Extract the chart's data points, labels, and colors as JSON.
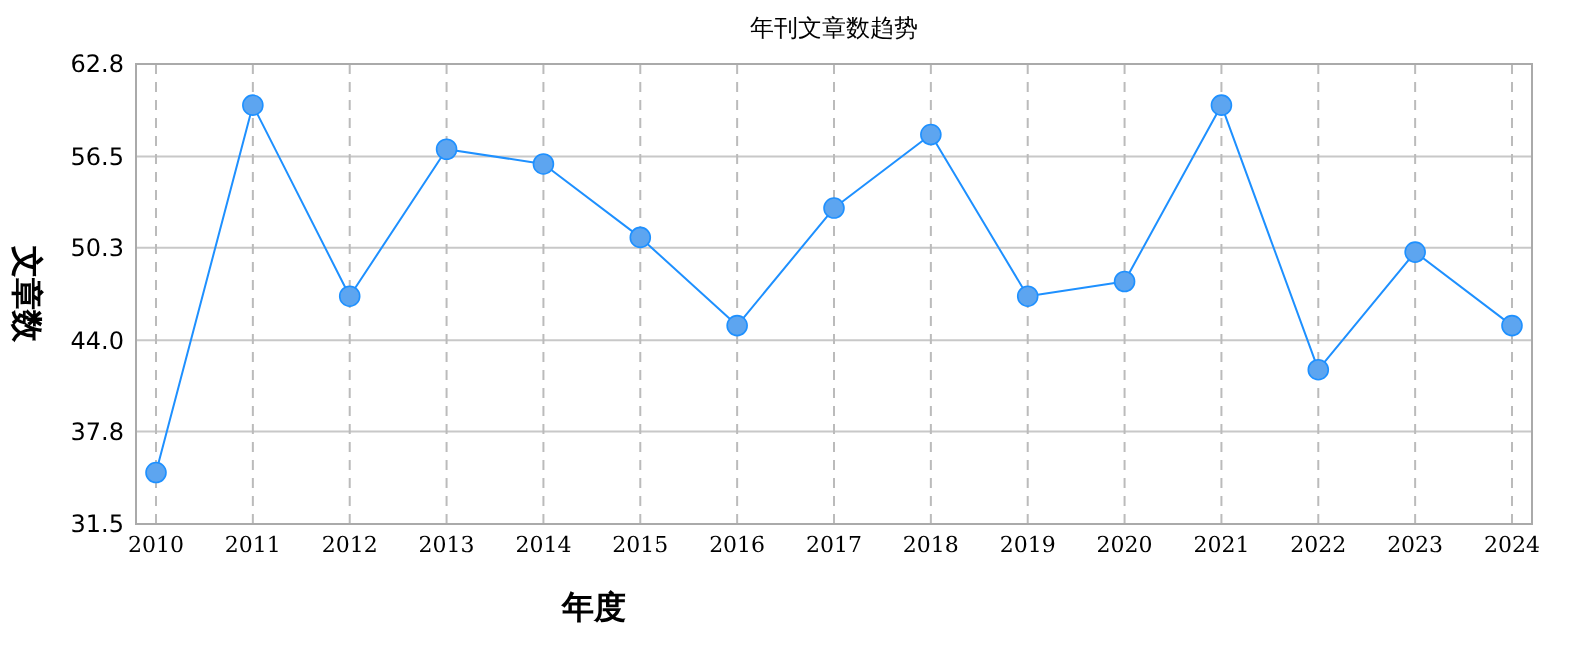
{
  "chart_data": {
    "type": "line",
    "title": "年刊文章数趋势",
    "xlabel": "年度",
    "ylabel": "文章数",
    "categories": [
      "2010",
      "2011",
      "2012",
      "2013",
      "2014",
      "2015",
      "2016",
      "2017",
      "2018",
      "2019",
      "2020",
      "2021",
      "2022",
      "2023",
      "2024"
    ],
    "series": [
      {
        "color": "#1e90ff",
        "values": [
          35,
          60,
          47,
          57,
          56,
          51,
          45,
          53,
          58,
          47,
          48,
          60,
          42,
          50,
          45
        ]
      }
    ],
    "ylim": [
      31.5,
      62.8
    ],
    "yticks": [
      31.5,
      37.8,
      {
        "value": 44,
        "label": "44.0"
      },
      50.3,
      56.5,
      62.8
    ],
    "grid": true,
    "marker": "circle",
    "line_style": "solid"
  }
}
